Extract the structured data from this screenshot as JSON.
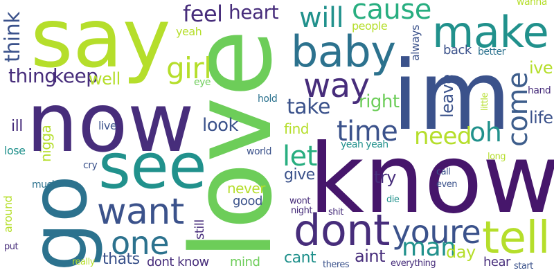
{
  "palette": {
    "dark_purple": "#46166b",
    "purple": "#472d7b",
    "indigo": "#3b528b",
    "blue": "#3e5e8c",
    "teal_blue": "#2c728e",
    "teal": "#21918c",
    "green_teal": "#28ae80",
    "green": "#5ec962",
    "light_green": "#6dcd59",
    "yellow_green": "#b5de2b"
  },
  "words": [
    {
      "id": "say",
      "text": "say",
      "color": "#b5de2b"
    },
    {
      "id": "now",
      "text": "now",
      "color": "#472d7b"
    },
    {
      "id": "go",
      "text": "go",
      "color": "#2c728e"
    },
    {
      "id": "love",
      "text": "love",
      "color": "#6dcd59"
    },
    {
      "id": "im",
      "text": "im",
      "color": "#3b528b"
    },
    {
      "id": "know",
      "text": "know",
      "color": "#46166b"
    },
    {
      "id": "see",
      "text": "see",
      "color": "#21918c"
    },
    {
      "id": "want",
      "text": "want",
      "color": "#3b528b"
    },
    {
      "id": "baby",
      "text": "baby",
      "color": "#2c728e"
    },
    {
      "id": "make",
      "text": "make",
      "color": "#21918c"
    },
    {
      "id": "dont",
      "text": "dont",
      "color": "#472d7b"
    },
    {
      "id": "youre",
      "text": "youre",
      "color": "#3b528b"
    },
    {
      "id": "tell",
      "text": "tell",
      "color": "#b5de2b"
    },
    {
      "id": "one",
      "text": "one",
      "color": "#2c728e"
    },
    {
      "id": "way",
      "text": "way",
      "color": "#472d7b"
    },
    {
      "id": "time",
      "text": "time",
      "color": "#3b528b"
    },
    {
      "id": "cause",
      "text": "cause",
      "color": "#28ae80"
    },
    {
      "id": "come",
      "text": "come",
      "color": "#3e5e8c"
    },
    {
      "id": "will",
      "text": "will",
      "color": "#21918c"
    },
    {
      "id": "girl",
      "text": "girl",
      "color": "#b5de2b"
    },
    {
      "id": "feel",
      "text": "feel",
      "color": "#472d7b"
    },
    {
      "id": "heart",
      "text": "heart",
      "color": "#472d7b"
    },
    {
      "id": "take",
      "text": "take",
      "color": "#3b528b"
    },
    {
      "id": "let",
      "text": "let",
      "color": "#28ae80"
    },
    {
      "id": "need",
      "text": "need",
      "color": "#b5de2b"
    },
    {
      "id": "oh",
      "text": "oh",
      "color": "#21918c"
    },
    {
      "id": "man",
      "text": "man",
      "color": "#21918c"
    },
    {
      "id": "think",
      "text": "think",
      "color": "#3b528b"
    },
    {
      "id": "thing",
      "text": "thing",
      "color": "#472d7b"
    },
    {
      "id": "keep",
      "text": "keep",
      "color": "#472d7b"
    },
    {
      "id": "well",
      "text": "well",
      "color": "#b5de2b"
    },
    {
      "id": "look",
      "text": "look",
      "color": "#3b528b"
    },
    {
      "id": "right",
      "text": "right",
      "color": "#6dcd59"
    },
    {
      "id": "find",
      "text": "find",
      "color": "#b5de2b"
    },
    {
      "id": "leave",
      "text": "leave",
      "color": "#3b528b"
    },
    {
      "id": "life",
      "text": "life",
      "color": "#3b528b"
    },
    {
      "id": "ive",
      "text": "ive",
      "color": "#b5de2b"
    },
    {
      "id": "yeah",
      "text": "yeah",
      "color": "#b5de2b"
    },
    {
      "id": "people",
      "text": "people",
      "color": "#b5de2b"
    },
    {
      "id": "always",
      "text": "always",
      "color": "#3b528b"
    },
    {
      "id": "back",
      "text": "back",
      "color": "#3b528b"
    },
    {
      "id": "better",
      "text": "better",
      "color": "#2c728e"
    },
    {
      "id": "wanna",
      "text": "wanna",
      "color": "#b5de2b"
    },
    {
      "id": "hand",
      "text": "hand",
      "color": "#472d7b"
    },
    {
      "id": "little",
      "text": "little",
      "color": "#b5de2b"
    },
    {
      "id": "eye",
      "text": "eye",
      "color": "#6dcd59"
    },
    {
      "id": "hold",
      "text": "hold",
      "color": "#2c728e"
    },
    {
      "id": "ill",
      "text": "ill",
      "color": "#472d7b"
    },
    {
      "id": "live",
      "text": "live",
      "color": "#3b528b"
    },
    {
      "id": "nigga",
      "text": "nigga",
      "color": "#b5de2b"
    },
    {
      "id": "lose",
      "text": "lose",
      "color": "#21918c"
    },
    {
      "id": "world",
      "text": "world",
      "color": "#3b528b"
    },
    {
      "id": "cry",
      "text": "cry",
      "color": "#3b528b"
    },
    {
      "id": "much",
      "text": "much",
      "color": "#2c728e"
    },
    {
      "id": "yeah_yeah",
      "text": "yeah yeah",
      "color": "#21918c"
    },
    {
      "id": "long",
      "text": "long",
      "color": "#b5de2b"
    },
    {
      "id": "call",
      "text": "call",
      "color": "#3b528b"
    },
    {
      "id": "even",
      "text": "even",
      "color": "#3b528b"
    },
    {
      "id": "try",
      "text": "try",
      "color": "#472d7b"
    },
    {
      "id": "give",
      "text": "give",
      "color": "#3b528b"
    },
    {
      "id": "never",
      "text": "never",
      "color": "#b5de2b"
    },
    {
      "id": "good",
      "text": "good",
      "color": "#3b528b"
    },
    {
      "id": "still",
      "text": "still",
      "color": "#472d7b"
    },
    {
      "id": "wont",
      "text": "wont",
      "color": "#472d7b"
    },
    {
      "id": "night",
      "text": "night",
      "color": "#472d7b"
    },
    {
      "id": "shit",
      "text": "shit",
      "color": "#472d7b"
    },
    {
      "id": "die",
      "text": "die",
      "color": "#21918c"
    },
    {
      "id": "around",
      "text": "around",
      "color": "#b5de2b"
    },
    {
      "id": "put",
      "text": "put",
      "color": "#472d7b"
    },
    {
      "id": "really",
      "text": "really",
      "color": "#b5de2b"
    },
    {
      "id": "thats",
      "text": "thats",
      "color": "#3b528b"
    },
    {
      "id": "dont_know",
      "text": "dont know",
      "color": "#472d7b"
    },
    {
      "id": "mind",
      "text": "mind",
      "color": "#6dcd59"
    },
    {
      "id": "cant",
      "text": "cant",
      "color": "#21918c"
    },
    {
      "id": "theres",
      "text": "theres",
      "color": "#3b528b"
    },
    {
      "id": "aint",
      "text": "aint",
      "color": "#472d7b"
    },
    {
      "id": "day",
      "text": "day",
      "color": "#b5de2b"
    },
    {
      "id": "everything",
      "text": "everything",
      "color": "#472d7b"
    },
    {
      "id": "hear",
      "text": "hear",
      "color": "#472d7b"
    },
    {
      "id": "start",
      "text": "start",
      "color": "#3b528b"
    }
  ]
}
